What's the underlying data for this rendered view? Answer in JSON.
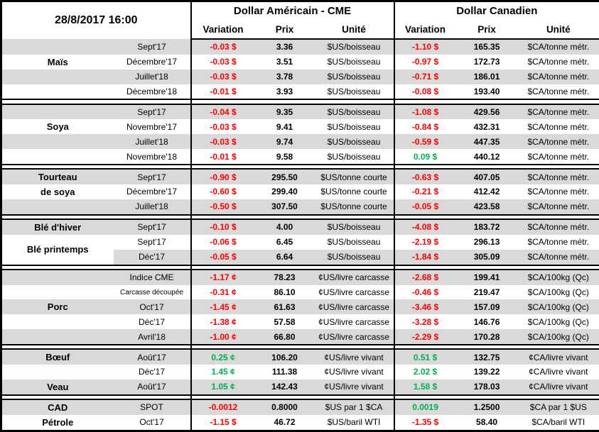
{
  "header": {
    "timestamp": "28/8/2017 16:00",
    "us_title": "Dollar Américain - CME",
    "ca_title": "Dollar Canadien",
    "columns": [
      "Variation",
      "Prix",
      "Unité"
    ]
  },
  "colors": {
    "negative": "#ff0000",
    "positive": "#00b050",
    "row_stripe": "#d9d9d9",
    "border": "#000000"
  },
  "groups": [
    {
      "rows": [
        {
          "label": "",
          "term": "Sept'17",
          "shade": true,
          "us_var": "-0.03 $",
          "us_dir": "neg",
          "us_prix": "3.36",
          "us_unit": "$US/boisseau",
          "ca_var": "-1.10 $",
          "ca_dir": "neg",
          "ca_prix": "165.35",
          "ca_unit": "$CA/tonne métr."
        },
        {
          "label": "Maïs",
          "term": "Décembre'17",
          "shade": false,
          "us_var": "-0.03 $",
          "us_dir": "neg",
          "us_prix": "3.51",
          "us_unit": "$US/boisseau",
          "ca_var": "-0.97 $",
          "ca_dir": "neg",
          "ca_prix": "172.73",
          "ca_unit": "$CA/tonne métr."
        },
        {
          "label": "",
          "term": "Juillet'18",
          "shade": true,
          "us_var": "-0.03 $",
          "us_dir": "neg",
          "us_prix": "3.78",
          "us_unit": "$US/boisseau",
          "ca_var": "-0.71 $",
          "ca_dir": "neg",
          "ca_prix": "186.01",
          "ca_unit": "$CA/tonne métr."
        },
        {
          "label": "",
          "term": "Décembre'18",
          "shade": false,
          "us_var": "-0.01 $",
          "us_dir": "neg",
          "us_prix": "3.93",
          "us_unit": "$US/boisseau",
          "ca_var": "-0.08 $",
          "ca_dir": "neg",
          "ca_prix": "193.40",
          "ca_unit": "$CA/tonne métr."
        }
      ]
    },
    {
      "rows": [
        {
          "label": "",
          "term": "Sept'17",
          "shade": true,
          "us_var": "-0.04 $",
          "us_dir": "neg",
          "us_prix": "9.35",
          "us_unit": "$US/boisseau",
          "ca_var": "-1.08 $",
          "ca_dir": "neg",
          "ca_prix": "429.56",
          "ca_unit": "$CA/tonne métr."
        },
        {
          "label": "Soya",
          "term": "Novembre'17",
          "shade": false,
          "us_var": "-0.03 $",
          "us_dir": "neg",
          "us_prix": "9.41",
          "us_unit": "$US/boisseau",
          "ca_var": "-0.84 $",
          "ca_dir": "neg",
          "ca_prix": "432.31",
          "ca_unit": "$CA/tonne métr."
        },
        {
          "label": "",
          "term": "Juillet'18",
          "shade": true,
          "us_var": "-0.03 $",
          "us_dir": "neg",
          "us_prix": "9.74",
          "us_unit": "$US/boisseau",
          "ca_var": "-0.59 $",
          "ca_dir": "neg",
          "ca_prix": "447.35",
          "ca_unit": "$CA/tonne métr."
        },
        {
          "label": "",
          "term": "Novembre'18",
          "shade": false,
          "us_var": "-0.01 $",
          "us_dir": "neg",
          "us_prix": "9.58",
          "us_unit": "$US/boisseau",
          "ca_var": "0.09 $",
          "ca_dir": "pos",
          "ca_prix": "440.12",
          "ca_unit": "$CA/tonne métr."
        }
      ]
    },
    {
      "rows": [
        {
          "label": "Tourteau",
          "term": "Sept'17",
          "shade": true,
          "us_var": "-0.90 $",
          "us_dir": "neg",
          "us_prix": "295.50",
          "us_unit": "$US/tonne courte",
          "ca_var": "-0.63 $",
          "ca_dir": "neg",
          "ca_prix": "407.05",
          "ca_unit": "$CA/tonne métr."
        },
        {
          "label": "de soya",
          "term": "Décembre'17",
          "shade": false,
          "us_var": "-0.60 $",
          "us_dir": "neg",
          "us_prix": "299.40",
          "us_unit": "$US/tonne courte",
          "ca_var": "-0.21 $",
          "ca_dir": "neg",
          "ca_prix": "412.42",
          "ca_unit": "$CA/tonne métr."
        },
        {
          "label": "",
          "term": "Juillet'18",
          "shade": true,
          "us_var": "-0.50 $",
          "us_dir": "neg",
          "us_prix": "307.50",
          "us_unit": "$US/tonne courte",
          "ca_var": "-0.05 $",
          "ca_dir": "neg",
          "ca_prix": "423.58",
          "ca_unit": "$CA/tonne métr."
        }
      ]
    },
    {
      "rows": [
        {
          "label": "Blé d'hiver",
          "term": "Sept'17",
          "shade": true,
          "us_var": "-0.10 $",
          "us_dir": "neg",
          "us_prix": "4.00",
          "us_unit": "$US/boisseau",
          "ca_var": "-4.08 $",
          "ca_dir": "neg",
          "ca_prix": "183.72",
          "ca_unit": "$CA/tonne métr."
        },
        {
          "label": "Blé printemps",
          "span": 2,
          "term": "Sept'17",
          "shade": false,
          "us_var": "-0.06 $",
          "us_dir": "neg",
          "us_prix": "6.45",
          "us_unit": "$US/boisseau",
          "ca_var": "-2.19 $",
          "ca_dir": "neg",
          "ca_prix": "296.13",
          "ca_unit": "$CA/tonne métr."
        },
        {
          "label_skip": true,
          "term": "Déc'17",
          "shade": true,
          "us_var": "-0.05 $",
          "us_dir": "neg",
          "us_prix": "6.64",
          "us_unit": "$US/boisseau",
          "ca_var": "-1.84 $",
          "ca_dir": "neg",
          "ca_prix": "305.09",
          "ca_unit": "$CA/tonne métr."
        }
      ]
    },
    {
      "rows": [
        {
          "label": "",
          "term": "Indice CME",
          "shade": true,
          "us_var": "-1.17 ¢",
          "us_dir": "neg",
          "us_prix": "78.23",
          "us_unit": "¢US/livre carcasse",
          "ca_var": "-2.68 $",
          "ca_dir": "neg",
          "ca_prix": "199.41",
          "ca_unit": "$CA/100kg (Qc)"
        },
        {
          "label": "",
          "term": "Carcasse découpée",
          "small_term": true,
          "shade": false,
          "us_var": "-0.31 ¢",
          "us_dir": "neg",
          "us_prix": "86.10",
          "us_unit": "¢US/livre carcasse",
          "ca_var": "-0.46 $",
          "ca_dir": "neg",
          "ca_prix": "219.47",
          "ca_unit": "$CA/100kg (Qc)"
        },
        {
          "label": "Porc",
          "term": "Oct'17",
          "shade": true,
          "us_var": "-1.45 ¢",
          "us_dir": "neg",
          "us_prix": "61.63",
          "us_unit": "¢US/livre carcasse",
          "ca_var": "-3.46 $",
          "ca_dir": "neg",
          "ca_prix": "157.09",
          "ca_unit": "$CA/100kg (Qc)"
        },
        {
          "label": "",
          "term": "Déc'17",
          "shade": false,
          "us_var": "-1.38 ¢",
          "us_dir": "neg",
          "us_prix": "57.58",
          "us_unit": "¢US/livre carcasse",
          "ca_var": "-3.28 $",
          "ca_dir": "neg",
          "ca_prix": "146.76",
          "ca_unit": "$CA/100kg (Qc)"
        },
        {
          "label": "",
          "term": "Avril'18",
          "shade": true,
          "us_var": "-1.00 ¢",
          "us_dir": "neg",
          "us_prix": "66.80",
          "us_unit": "¢US/livre carcasse",
          "ca_var": "-2.29 $",
          "ca_dir": "neg",
          "ca_prix": "170.28",
          "ca_unit": "$CA/100kg (Qc)"
        }
      ]
    },
    {
      "rows": [
        {
          "label": "Bœuf",
          "term": "Août'17",
          "shade": true,
          "us_var": "0.25 ¢",
          "us_dir": "pos",
          "us_prix": "106.20",
          "us_unit": "¢US/livre vivant",
          "ca_var": "0.51 $",
          "ca_dir": "pos",
          "ca_prix": "132.75",
          "ca_unit": "¢CA/livre vivant"
        },
        {
          "label": "",
          "term": "Déc'17",
          "shade": false,
          "us_var": "1.45 ¢",
          "us_dir": "pos",
          "us_prix": "111.38",
          "us_unit": "¢US/livre vivant",
          "ca_var": "2.02 $",
          "ca_dir": "pos",
          "ca_prix": "139.22",
          "ca_unit": "¢CA/livre vivant"
        },
        {
          "label": "Veau",
          "term": "Août'17",
          "shade": true,
          "us_var": "1.05 ¢",
          "us_dir": "pos",
          "us_prix": "142.43",
          "us_unit": "¢US/livre vivant",
          "ca_var": "1.58 $",
          "ca_dir": "pos",
          "ca_prix": "178.03",
          "ca_unit": "¢CA/livre vivant"
        }
      ]
    },
    {
      "rows": [
        {
          "label": "CAD",
          "term": "SPOT",
          "shade": true,
          "us_var": "-0.0012",
          "us_dir": "neg",
          "us_prix": "0.8000",
          "us_unit": "$US par 1 $CA",
          "ca_var": "0.0019",
          "ca_dir": "pos",
          "ca_prix": "1.2500",
          "ca_unit": "$CA par 1 $US"
        },
        {
          "label": "Pétrole",
          "term": "Oct'17",
          "shade": false,
          "us_var": "-1.15 $",
          "us_dir": "neg",
          "us_prix": "46.72",
          "us_unit": "$US/baril WTI",
          "ca_var": "-1.35 $",
          "ca_dir": "neg",
          "ca_prix": "58.40",
          "ca_unit": "$CA/baril WTI"
        }
      ]
    }
  ]
}
